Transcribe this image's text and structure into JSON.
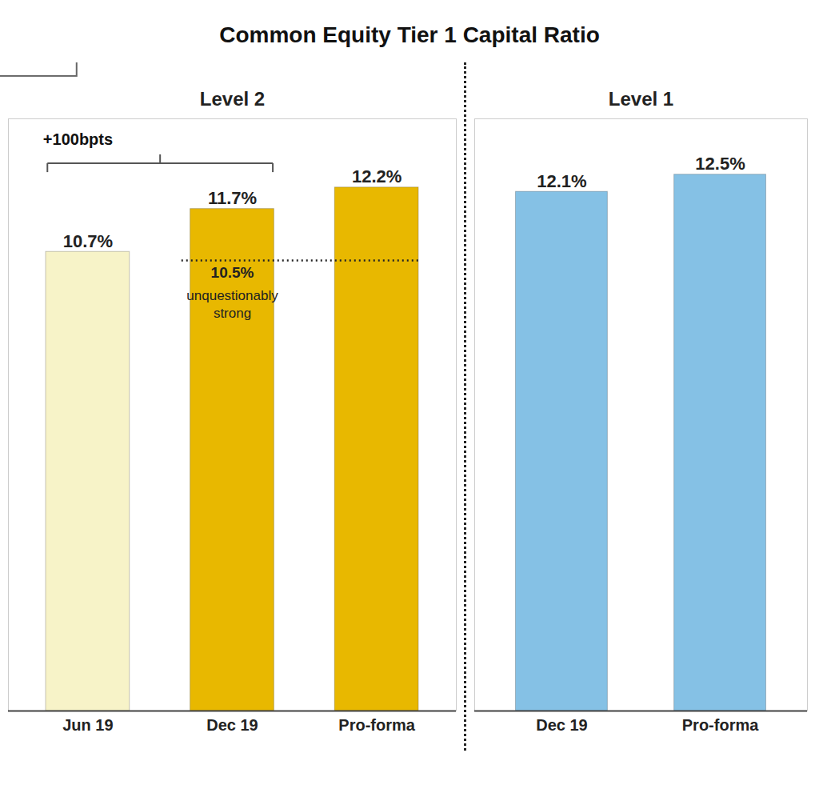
{
  "title": "Common Equity Tier 1 Capital Ratio",
  "chart_data": [
    {
      "type": "bar",
      "title": "Level 2",
      "categories": [
        "Jun 19",
        "Dec 19",
        "Pro-forma"
      ],
      "values": [
        10.7,
        11.7,
        12.2
      ],
      "value_labels": [
        "10.7%",
        "11.7%",
        "12.2%"
      ],
      "colors": [
        "#f7f3c8",
        "#e8b800",
        "#e8b800"
      ],
      "data_labels": true,
      "ylim": [
        0,
        13.8
      ],
      "tick_labels": "x",
      "grid": false,
      "annotations": [
        {
          "type": "line",
          "y": 10.5,
          "from": "Dec 19",
          "to": "Pro-forma",
          "label": "10.5%",
          "text": "unquestionably\nstrong",
          "line_style": "dotted"
        },
        {
          "type": "bracket",
          "from": "Jun 19",
          "to": "Dec 19",
          "label": "+100bpts"
        }
      ]
    },
    {
      "type": "bar",
      "title": "Level 1",
      "categories": [
        "Dec 19",
        "Pro-forma"
      ],
      "values": [
        12.1,
        12.5
      ],
      "value_labels": [
        "12.1%",
        "12.5%"
      ],
      "colors": [
        "#85c1e5",
        "#85c1e5"
      ],
      "data_labels": true,
      "ylim": [
        0,
        13.8
      ],
      "tick_labels": "x",
      "grid": false
    }
  ]
}
